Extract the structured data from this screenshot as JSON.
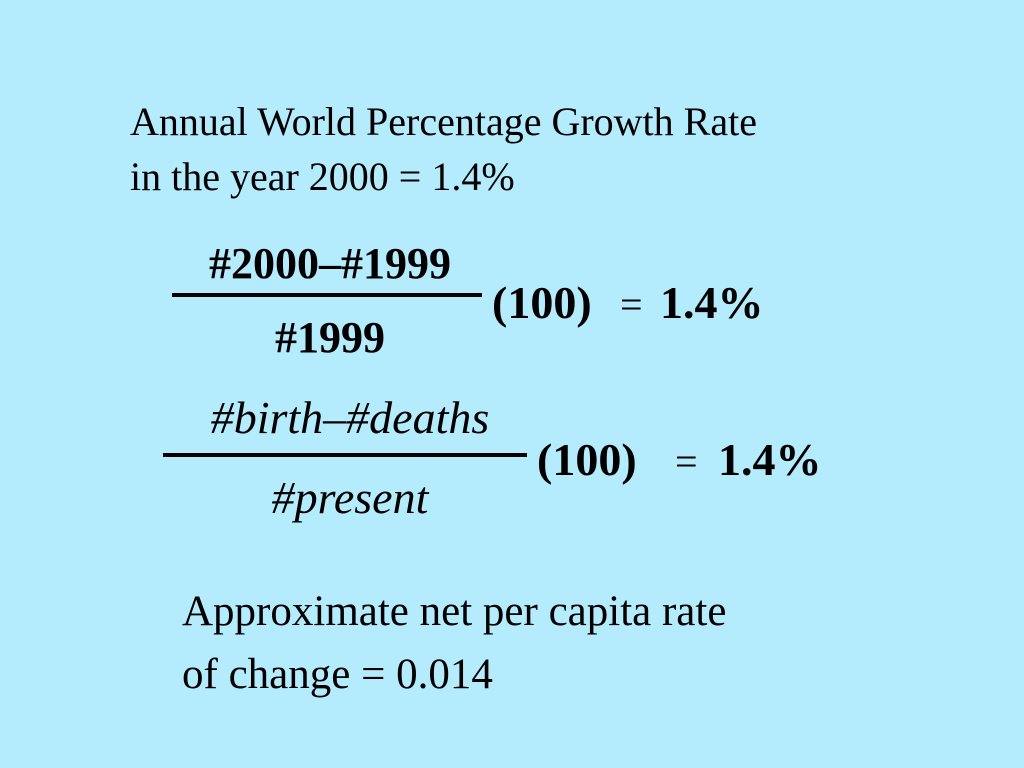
{
  "heading": {
    "lines": [
      "Annual World Percentage Growth Rate",
      "in the year 2000 = 1.4%"
    ]
  },
  "equations": [
    {
      "numerator": "#2000–#1999",
      "denominator": "#1999",
      "factor": "(100)",
      "equals": "=",
      "result": "1.4%"
    },
    {
      "numerator": "#birth–#deaths",
      "denominator": "#present",
      "factor": "(100)",
      "equals": "=",
      "result": "1.4%"
    }
  ],
  "conclusion": {
    "lines": [
      "Approximate net per capita rate",
      "of change = 0.014"
    ]
  }
}
